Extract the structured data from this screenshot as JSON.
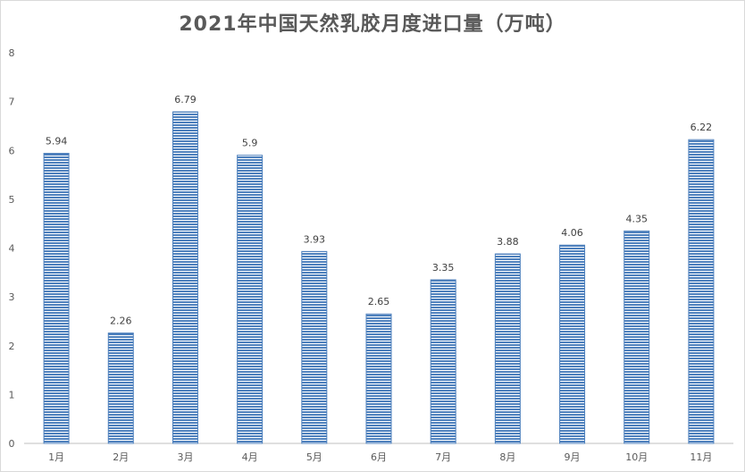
{
  "chart_data": {
    "type": "bar",
    "title": "2021年中国天然乳胶月度进口量（万吨）",
    "categories": [
      "1月",
      "2月",
      "3月",
      "4月",
      "5月",
      "6月",
      "7月",
      "8月",
      "9月",
      "10月",
      "11月"
    ],
    "values": [
      5.94,
      2.26,
      6.79,
      5.9,
      3.93,
      2.65,
      3.35,
      3.88,
      4.06,
      4.35,
      6.22
    ],
    "value_labels": [
      "5.94",
      "2.26",
      "6.79",
      "5.9",
      "3.93",
      "2.65",
      "3.35",
      "3.88",
      "4.06",
      "4.35",
      "6.22"
    ],
    "y_ticks": [
      "0",
      "1",
      "2",
      "3",
      "4",
      "5",
      "6",
      "7",
      "8"
    ],
    "ylim": [
      0,
      8
    ],
    "xlabel": "",
    "ylabel": "",
    "grid": false,
    "legend": "none",
    "bar_color": "#4f81bd",
    "bar_stripe_color": "#ffffff",
    "axis_color": "#bfbfbf"
  }
}
